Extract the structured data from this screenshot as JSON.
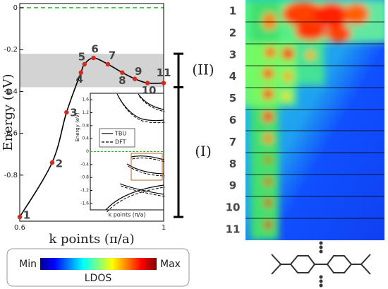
{
  "chart_data": [
    {
      "type": "line",
      "xlabel": "k points (π/a)",
      "ylabel": "Energy (eV)",
      "x": [
        0.6,
        0.69,
        0.73,
        0.77,
        0.78,
        0.805,
        0.845,
        0.885,
        0.92,
        0.955,
        1.0
      ],
      "values": [
        -1.0,
        -0.74,
        -0.5,
        -0.31,
        -0.27,
        -0.24,
        -0.27,
        -0.31,
        -0.34,
        -0.36,
        -0.36
      ],
      "point_labels": [
        "1",
        "2",
        "3",
        "4",
        "5",
        "6",
        "7",
        "8",
        "9",
        "10",
        "11"
      ],
      "color": "#d42a1e",
      "line_color": "#000000",
      "xlim": [
        0.6,
        1.0
      ],
      "xticks": [
        0.6,
        1
      ],
      "ylim": [
        -1.02,
        0.02
      ],
      "yticks": [
        0,
        -0.2,
        -0.4,
        -0.6,
        -0.8
      ],
      "reference_line": {
        "value": 0,
        "color": "#2bb52b"
      },
      "shaded_band": {
        "from": -0.22,
        "to": -0.38,
        "color": "#d3d3d3"
      },
      "regions": [
        {
          "label": "(II)",
          "from": -0.22,
          "to": -0.38
        },
        {
          "label": "(I)",
          "from": -0.38,
          "to": -1.0
        }
      ]
    },
    {
      "type": "line",
      "xlabel": "k points (π/a)",
      "ylabel": "Energy (eV)",
      "ylim": [
        -1.8,
        1.8
      ],
      "yticks": [
        1.6,
        1.2,
        0.8,
        0.4,
        0,
        -0.4,
        -0.8,
        -1.2,
        -1.6
      ],
      "series": [
        {
          "name": "TBU",
          "color": "#000000"
        },
        {
          "name": "DFT",
          "color": "#000000"
        }
      ]
    }
  ],
  "heatmap": {
    "row_labels": [
      "1",
      "2",
      "3",
      "4",
      "5",
      "6",
      "7",
      "8",
      "9",
      "10",
      "11"
    ]
  },
  "colorbar": {
    "min_label": "Min",
    "max_label": "Max",
    "title": "LDOS"
  }
}
